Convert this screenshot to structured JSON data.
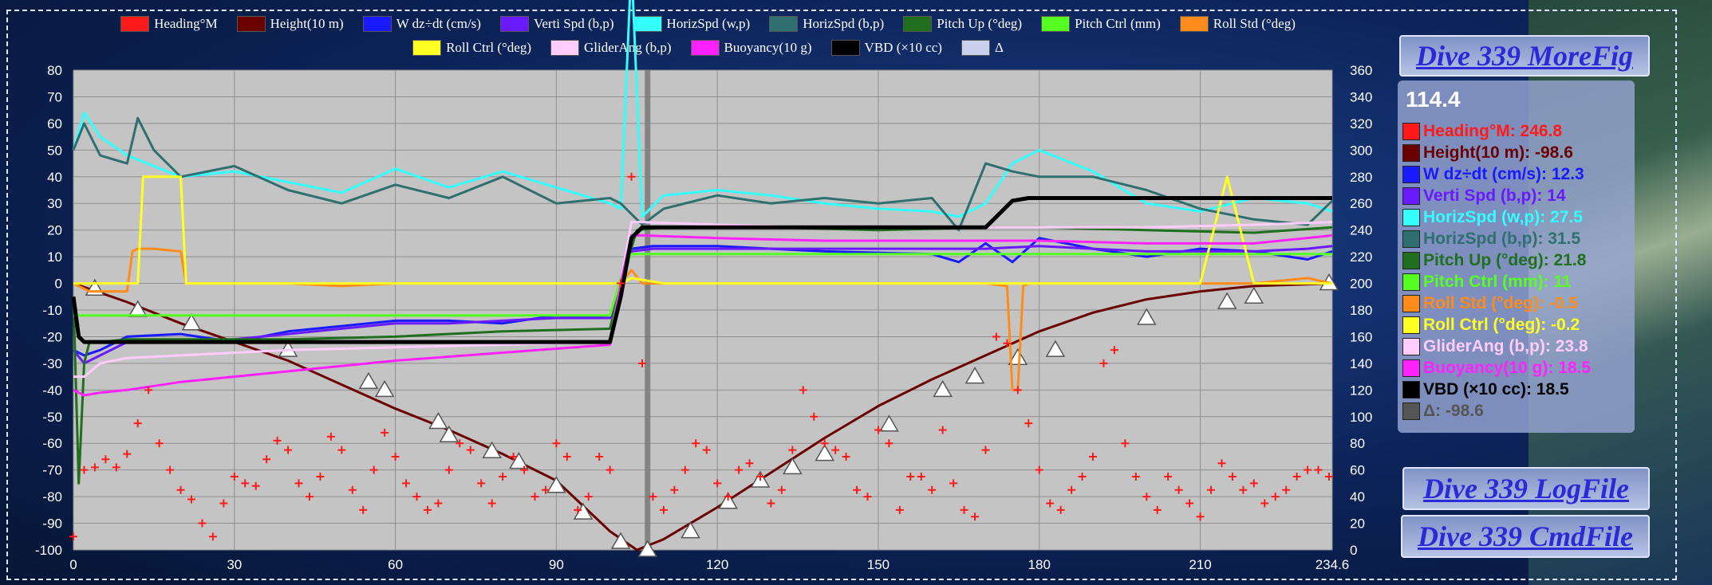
{
  "panel": {
    "morefig_label": "Dive 339  MoreFig",
    "logfile_label": "Dive 339   LogFile",
    "cmdfile_label": "Dive 339  CmdFile",
    "readout_x": "114.4",
    "readout": [
      {
        "label": "Heading°M: 246.8",
        "color": "#ff1a1a"
      },
      {
        "label": "Height(10 m): -98.6",
        "color": "#6b0000"
      },
      {
        "label": "W dz÷dt (cm/s): 12.3",
        "color": "#1a1aff"
      },
      {
        "label": "Verti Spd (b,p): 14",
        "color": "#6a1aff"
      },
      {
        "label": "HorizSpd (w,p): 27.5",
        "color": "#33ffff"
      },
      {
        "label": "HorizSpd (b,p): 31.5",
        "color": "#2f6f6f"
      },
      {
        "label": "Pitch Up (°deg): 21.8",
        "color": "#1f6f1f"
      },
      {
        "label": "Pitch Ctrl (mm): 11",
        "color": "#55ff22"
      },
      {
        "label": "Roll Std (°deg): -0.5",
        "color": "#ff8c1a"
      },
      {
        "label": "Roll Ctrl (°deg): -0.2",
        "color": "#ffff22"
      },
      {
        "label": "GliderAng (b,p): 23.8",
        "color": "#ffccff"
      },
      {
        "label": "Buoyancy(10 g): 18.5",
        "color": "#ff22ff"
      },
      {
        "label": "VBD (×10 cc): 18.5",
        "color": "#000000"
      },
      {
        "label": "Δ: -98.6",
        "color": "#555555"
      }
    ]
  },
  "chart_data": {
    "type": "line",
    "title": "",
    "xlabel": "",
    "ylabel": "",
    "xlim": [
      0,
      234.6
    ],
    "ylim": [
      -100,
      80
    ],
    "y2lim": [
      0,
      360
    ],
    "x_ticks": [
      "0",
      "30",
      "60",
      "90",
      "120",
      "150",
      "180",
      "210",
      "234.6"
    ],
    "y_ticks": [
      "80",
      "70",
      "60",
      "50",
      "40",
      "30",
      "20",
      "10",
      "0",
      "-10",
      "-20",
      "-30",
      "-40",
      "-50",
      "-60",
      "-70",
      "-80",
      "-90",
      "-100"
    ],
    "y2_ticks": [
      "360",
      "340",
      "320",
      "300",
      "280",
      "260",
      "240",
      "220",
      "200",
      "180",
      "160",
      "140",
      "120",
      "100",
      "80",
      "60",
      "40",
      "20",
      "0"
    ],
    "grid": true,
    "legend_position": "top",
    "cursor_x": 107,
    "legend": [
      {
        "name": "Heading°M",
        "color": "#ff1a1a"
      },
      {
        "name": "Height(10 m)",
        "color": "#6b0000"
      },
      {
        "name": "W dz÷dt (cm/s)",
        "color": "#1a1aff"
      },
      {
        "name": "Verti Spd (b,p)",
        "color": "#6a1aff"
      },
      {
        "name": "HorizSpd (w,p)",
        "color": "#33ffff"
      },
      {
        "name": "HorizSpd (b,p)",
        "color": "#2f6f6f"
      },
      {
        "name": "Pitch Up (°deg)",
        "color": "#1f6f1f"
      },
      {
        "name": "Pitch Ctrl (mm)",
        "color": "#55ff22"
      },
      {
        "name": "Roll Std (°deg)",
        "color": "#ff8c1a"
      },
      {
        "name": "Roll Ctrl (°deg)",
        "color": "#ffff22"
      },
      {
        "name": "GliderAng (b,p)",
        "color": "#ffccff"
      },
      {
        "name": "Buoyancy(10 g)",
        "color": "#ff22ff"
      },
      {
        "name": "VBD (×10 cc)",
        "color": "#000000"
      },
      {
        "name": "Δ",
        "color": "#c8d0ee"
      }
    ],
    "series": [
      {
        "name": "Height(10 m)",
        "color": "#6b0000",
        "x": [
          0,
          10,
          20,
          30,
          40,
          50,
          60,
          70,
          80,
          90,
          100,
          105,
          110,
          120,
          130,
          140,
          150,
          160,
          170,
          180,
          190,
          200,
          210,
          220,
          234.6
        ],
        "y": [
          0,
          -7,
          -15,
          -22,
          -29,
          -38,
          -47,
          -55,
          -64,
          -74,
          -93,
          -100,
          -96,
          -84,
          -71,
          -58,
          -46,
          -36,
          -27,
          -18,
          -11,
          -6,
          -3,
          -1,
          0
        ]
      },
      {
        "name": "Δ",
        "color": "#c8d0ee",
        "x": [
          4,
          12,
          22,
          40,
          55,
          58,
          68,
          70,
          78,
          83,
          90,
          95,
          102,
          107,
          115,
          122,
          128,
          134,
          140,
          152,
          162,
          168,
          176,
          183,
          200,
          215,
          220,
          234
        ],
        "y": [
          -2,
          -10,
          -15,
          -25,
          -37,
          -40,
          -52,
          -57,
          -63,
          -67,
          -76,
          -86,
          -97,
          -100,
          -93,
          -82,
          -74,
          -69,
          -64,
          -53,
          -40,
          -35,
          -28,
          -25,
          -13,
          -7,
          -5,
          0
        ]
      },
      {
        "name": "HorizSpd (w,p)",
        "color": "#33ffff",
        "x": [
          0,
          2,
          5,
          10,
          20,
          30,
          40,
          50,
          60,
          70,
          80,
          90,
          100,
          102,
          104,
          106,
          110,
          120,
          130,
          140,
          150,
          160,
          165,
          170,
          175,
          180,
          190,
          200,
          210,
          220,
          230,
          234.6
        ],
        "y": [
          50,
          64,
          55,
          48,
          40,
          42,
          38,
          34,
          43,
          36,
          42,
          36,
          30,
          28,
          120,
          25,
          33,
          35,
          33,
          30,
          28,
          27,
          25,
          30,
          45,
          50,
          42,
          30,
          27,
          32,
          30,
          27
        ]
      },
      {
        "name": "HorizSpd (b,p)",
        "color": "#2f6f6f",
        "x": [
          0,
          2,
          5,
          10,
          12,
          15,
          20,
          30,
          40,
          50,
          60,
          70,
          80,
          90,
          100,
          102,
          106,
          110,
          120,
          130,
          140,
          150,
          160,
          165,
          170,
          175,
          180,
          190,
          200,
          210,
          220,
          230,
          234.6
        ],
        "y": [
          50,
          60,
          48,
          45,
          62,
          50,
          40,
          44,
          35,
          30,
          37,
          32,
          40,
          30,
          32,
          30,
          22,
          28,
          33,
          30,
          32,
          30,
          32,
          20,
          45,
          42,
          40,
          40,
          35,
          28,
          24,
          22,
          31
        ]
      },
      {
        "name": "W dz÷dt (cm/s)",
        "color": "#1a1aff",
        "x": [
          0,
          2,
          5,
          10,
          20,
          30,
          40,
          50,
          60,
          70,
          80,
          90,
          100,
          102,
          104,
          108,
          120,
          140,
          160,
          165,
          170,
          175,
          180,
          190,
          200,
          210,
          220,
          230,
          234.6
        ],
        "y": [
          -25,
          -27,
          -25,
          -20,
          -19,
          -22,
          -18,
          -16,
          -14,
          -14,
          -15,
          -12,
          -13,
          -2,
          13,
          14,
          14,
          12,
          11,
          8,
          15,
          8,
          17,
          13,
          10,
          13,
          12,
          9,
          12
        ]
      },
      {
        "name": "Verti Spd (b,p)",
        "color": "#6a1aff",
        "x": [
          0,
          2,
          5,
          10,
          20,
          30,
          40,
          50,
          60,
          70,
          80,
          90,
          100,
          102,
          104,
          108,
          120,
          140,
          160,
          170,
          180,
          190,
          200,
          210,
          220,
          230,
          234.6
        ],
        "y": [
          -25,
          -30,
          -27,
          -22,
          -22,
          -21,
          -19,
          -17,
          -15,
          -15,
          -14,
          -13,
          -13,
          -1,
          12,
          13,
          13,
          13,
          13,
          13,
          14,
          13,
          12,
          12,
          12,
          13,
          14
        ]
      },
      {
        "name": "Pitch Up (°deg)",
        "color": "#1f6f1f",
        "x": [
          0,
          1,
          2,
          3,
          5,
          10,
          20,
          40,
          60,
          80,
          100,
          102,
          105,
          110,
          130,
          150,
          170,
          180,
          200,
          220,
          234.6
        ],
        "y": [
          -5,
          -75,
          -30,
          -22,
          -22,
          -21,
          -21,
          -21,
          -20,
          -18,
          -17,
          0,
          20,
          21,
          21,
          20,
          21,
          21,
          20,
          19,
          21
        ]
      },
      {
        "name": "Pitch Ctrl (mm)",
        "color": "#55ff22",
        "x": [
          0,
          2,
          5,
          100,
          102,
          104,
          234.6
        ],
        "y": [
          -12,
          -12,
          -12,
          -12,
          2,
          11,
          11
        ]
      },
      {
        "name": "Roll Std (°deg)",
        "color": "#ff8c1a",
        "x": [
          0,
          3,
          10,
          11,
          12,
          15,
          20,
          21,
          30,
          40,
          50,
          60,
          70,
          80,
          90,
          100,
          102,
          104,
          106,
          110,
          120,
          140,
          160,
          170,
          174,
          175,
          176,
          177,
          178,
          200,
          210,
          220,
          230,
          234.6
        ],
        "y": [
          0,
          -3,
          -3,
          12,
          13,
          13,
          12,
          0,
          0,
          0,
          -1,
          0,
          0,
          0,
          0,
          0,
          0,
          5,
          0,
          0,
          0,
          0,
          0,
          0,
          -1,
          -40,
          -40,
          -1,
          0,
          0,
          0,
          0,
          2,
          0
        ]
      },
      {
        "name": "Roll Ctrl (°deg)",
        "color": "#ffff22",
        "x": [
          0,
          12,
          13,
          20,
          21,
          30,
          40,
          50,
          60,
          70,
          80,
          90,
          100,
          102,
          104,
          110,
          120,
          140,
          160,
          170,
          180,
          200,
          210,
          215,
          220,
          230,
          234.6
        ],
        "y": [
          0,
          0,
          40,
          40,
          0,
          0,
          0,
          0,
          0,
          0,
          0,
          0,
          0,
          0,
          2,
          0,
          0,
          0,
          0,
          0,
          0,
          0,
          0,
          40,
          0,
          0,
          0
        ]
      },
      {
        "name": "GliderAng (b,p)",
        "color": "#ffccff",
        "x": [
          0,
          2,
          5,
          10,
          20,
          40,
          60,
          80,
          100,
          102,
          104,
          106,
          120,
          140,
          160,
          180,
          200,
          220,
          234.6
        ],
        "y": [
          -35,
          -35,
          -30,
          -28,
          -27,
          -25,
          -24,
          -23,
          -22,
          0,
          23,
          23,
          22,
          21,
          21,
          21,
          21,
          22,
          23
        ]
      },
      {
        "name": "Buoyancy(10 g)",
        "color": "#ff22ff",
        "x": [
          0,
          2,
          5,
          10,
          20,
          40,
          60,
          80,
          100,
          102,
          104,
          106,
          120,
          140,
          160,
          180,
          200,
          220,
          234.6
        ],
        "y": [
          -40,
          -42,
          -41,
          -40,
          -37,
          -33,
          -29,
          -26,
          -23,
          0,
          18,
          18,
          17,
          16,
          16,
          16,
          15,
          15,
          18
        ]
      },
      {
        "name": "VBD (×10 cc)",
        "color": "#000000",
        "x": [
          0,
          1,
          2,
          3,
          5,
          20,
          40,
          60,
          80,
          90,
          100,
          102,
          104,
          106,
          110,
          130,
          150,
          170,
          175,
          178,
          180,
          200,
          210,
          220,
          234.6
        ],
        "y": [
          -5,
          -20,
          -22,
          -22,
          -22,
          -22,
          -22,
          -22,
          -22,
          -22,
          -22,
          -5,
          17,
          21,
          21,
          21,
          21,
          21,
          31,
          32,
          32,
          32,
          32,
          32,
          32
        ]
      },
      {
        "name": "Heading°M",
        "color": "#ff1a1a",
        "axis": "right",
        "x": [
          0,
          2,
          4,
          6,
          8,
          10,
          12,
          14,
          16,
          18,
          20,
          22,
          24,
          26,
          28,
          30,
          32,
          34,
          36,
          38,
          40,
          42,
          44,
          46,
          48,
          50,
          52,
          54,
          56,
          58,
          60,
          62,
          64,
          66,
          68,
          70,
          72,
          74,
          76,
          78,
          80,
          82,
          84,
          86,
          88,
          90,
          92,
          94,
          96,
          98,
          100,
          102,
          104,
          106,
          108,
          110,
          112,
          114,
          116,
          118,
          120,
          122,
          124,
          126,
          128,
          130,
          132,
          134,
          136,
          138,
          140,
          142,
          144,
          146,
          148,
          150,
          152,
          154,
          156,
          158,
          160,
          162,
          164,
          166,
          168,
          170,
          172,
          174,
          176,
          178,
          180,
          182,
          184,
          186,
          188,
          190,
          192,
          194,
          196,
          198,
          200,
          202,
          204,
          206,
          208,
          210,
          212,
          214,
          216,
          218,
          220,
          222,
          224,
          226,
          228,
          230,
          232,
          234
        ],
        "y": [
          10,
          60,
          62,
          68,
          62,
          72,
          95,
          120,
          80,
          60,
          45,
          38,
          20,
          10,
          35,
          55,
          50,
          48,
          68,
          82,
          75,
          50,
          40,
          55,
          85,
          75,
          45,
          30,
          60,
          88,
          70,
          50,
          40,
          30,
          35,
          60,
          80,
          75,
          50,
          35,
          55,
          70,
          60,
          40,
          45,
          80,
          70,
          30,
          40,
          70,
          60,
          200,
          280,
          140,
          40,
          30,
          45,
          60,
          80,
          75,
          50,
          40,
          60,
          65,
          55,
          35,
          45,
          75,
          120,
          100,
          80,
          75,
          70,
          45,
          40,
          90,
          80,
          30,
          55,
          55,
          45,
          90,
          50,
          30,
          25,
          75,
          160,
          155,
          120,
          95,
          60,
          35,
          30,
          45,
          55,
          70,
          140,
          150,
          80,
          55,
          40,
          30,
          55,
          45,
          35,
          25,
          45,
          65,
          55,
          45,
          50,
          35,
          40,
          45,
          55,
          60,
          60,
          55
        ]
      }
    ]
  }
}
